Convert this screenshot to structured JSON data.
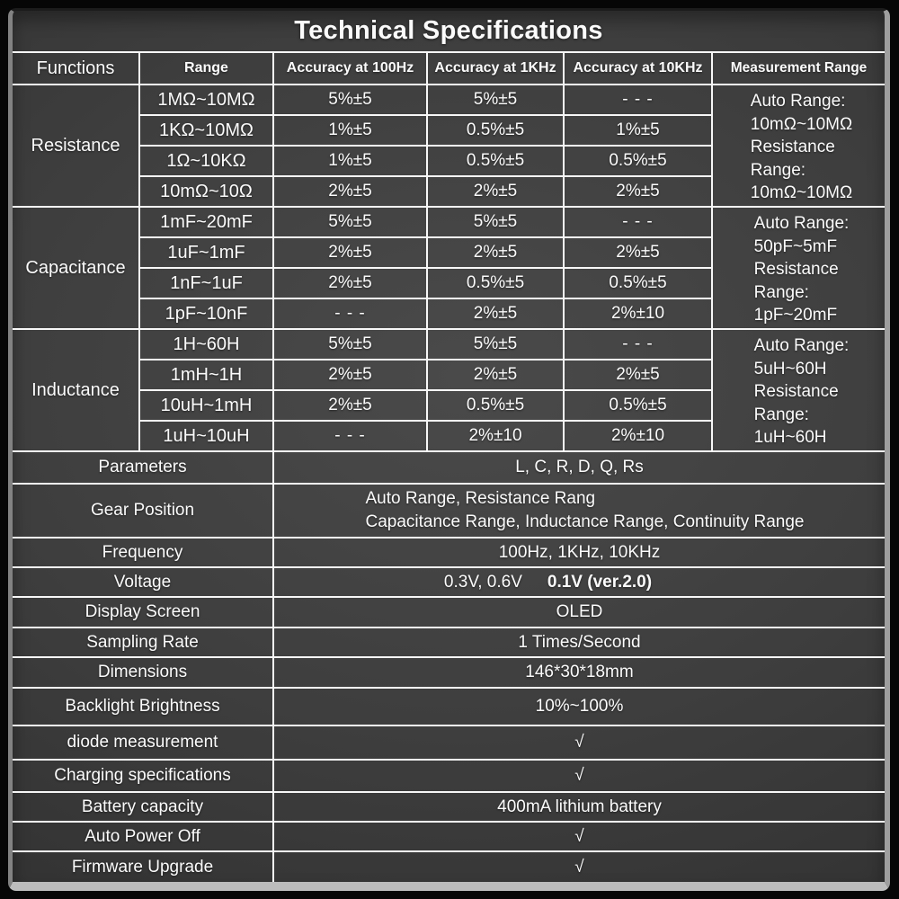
{
  "title": "Technical Specifications",
  "columns": {
    "functions": "Functions",
    "range": "Range",
    "a100": "Accuracy at 100Hz",
    "a1k": "Accuracy at 1KHz",
    "a10k": "Accuracy at 10KHz",
    "meas": "Measurement Range"
  },
  "sections": [
    {
      "name": "Resistance",
      "rows": [
        {
          "range": "1MΩ~10MΩ",
          "a100": "5%±5",
          "a1k": "5%±5",
          "a10k": "- - -"
        },
        {
          "range": "1KΩ~10MΩ",
          "a100": "1%±5",
          "a1k": "0.5%±5",
          "a10k": "1%±5"
        },
        {
          "range": "1Ω~10KΩ",
          "a100": "1%±5",
          "a1k": "0.5%±5",
          "a10k": "0.5%±5"
        },
        {
          "range": "10mΩ~10Ω",
          "a100": "2%±5",
          "a1k": "2%±5",
          "a10k": "2%±5"
        }
      ],
      "measurement": "Auto Range:\n10mΩ~10MΩ\nResistance\nRange:\n10mΩ~10MΩ"
    },
    {
      "name": "Capacitance",
      "rows": [
        {
          "range": "1mF~20mF",
          "a100": "5%±5",
          "a1k": "5%±5",
          "a10k": "- - -"
        },
        {
          "range": "1uF~1mF",
          "a100": "2%±5",
          "a1k": "2%±5",
          "a10k": "2%±5"
        },
        {
          "range": "1nF~1uF",
          "a100": "2%±5",
          "a1k": "0.5%±5",
          "a10k": "0.5%±5"
        },
        {
          "range": "1pF~10nF",
          "a100": "- - -",
          "a1k": "2%±5",
          "a10k": "2%±10"
        }
      ],
      "measurement": "Auto Range:\n50pF~5mF\nResistance\nRange:\n1pF~20mF"
    },
    {
      "name": "Inductance",
      "rows": [
        {
          "range": "1H~60H",
          "a100": "5%±5",
          "a1k": "5%±5",
          "a10k": "- - -"
        },
        {
          "range": "1mH~1H",
          "a100": "2%±5",
          "a1k": "2%±5",
          "a10k": "2%±5"
        },
        {
          "range": "10uH~1mH",
          "a100": "2%±5",
          "a1k": "0.5%±5",
          "a10k": "0.5%±5"
        },
        {
          "range": "1uH~10uH",
          "a100": "- - -",
          "a1k": "2%±10",
          "a10k": "2%±10"
        }
      ],
      "measurement": "Auto Range:\n5uH~60H\nResistance\nRange:\n1uH~60H"
    }
  ],
  "specs": [
    {
      "label": "Parameters",
      "value": "L,  C,  R,  D,  Q,  Rs"
    },
    {
      "label": "Gear Position",
      "value": "Auto Range,  Resistance Rang\nCapacitance Range,  Inductance Range,  Continuity Range"
    },
    {
      "label": "Frequency",
      "value": "100Hz,  1KHz,  10KHz"
    },
    {
      "label": "Voltage",
      "value": "0.3V,  0.6V",
      "value_bold": "0.1V (ver.2.0)"
    },
    {
      "label": "Display Screen",
      "value": "OLED"
    },
    {
      "label": "Sampling Rate",
      "value": "1 Times/Second"
    },
    {
      "label": "Dimensions",
      "value": "146*30*18mm"
    },
    {
      "label": "Backlight Brightness",
      "value": "10%~100%"
    },
    {
      "label": "diode measurement",
      "value": "√"
    },
    {
      "label": "Charging specifications",
      "value": "√"
    },
    {
      "label": "Battery capacity",
      "value": "400mA lithium battery"
    },
    {
      "label": "Auto Power Off",
      "value": "√"
    },
    {
      "label": "Firmware Upgrade",
      "value": "√"
    }
  ],
  "colors": {
    "card_bg": "#3e3e3e",
    "grid_line": "#f7f7f7",
    "text": "#fbfbfb",
    "page_bg": "#060606",
    "bevel": "#bcbcbc"
  }
}
